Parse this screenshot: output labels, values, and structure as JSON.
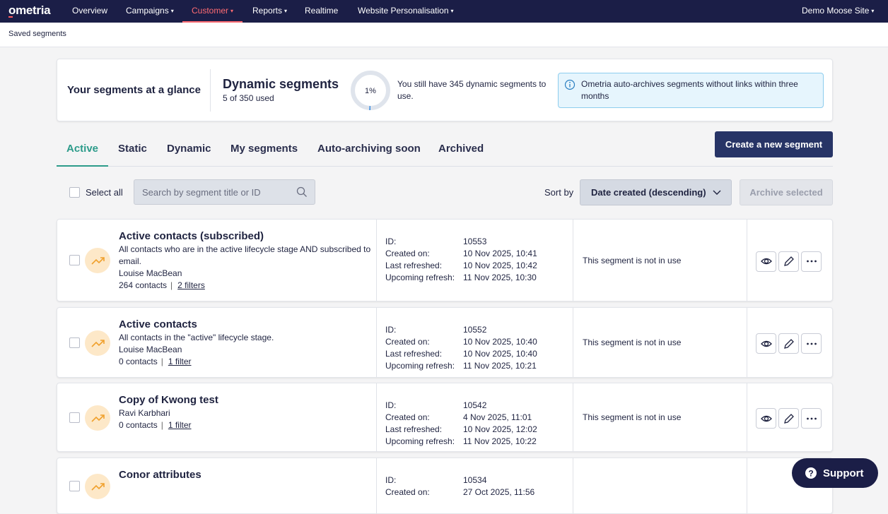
{
  "nav": {
    "logo": "ometria",
    "items": [
      "Overview",
      "Campaigns",
      "Customer",
      "Reports",
      "Realtime",
      "Website Personalisation"
    ],
    "site": "Demo Moose Site"
  },
  "breadcrumb": "Saved segments",
  "glance": {
    "title": "Your segments at a glance",
    "dynamic_title": "Dynamic segments",
    "used": "5 of 350 used",
    "usage": {
      "value": 1,
      "label": "1%"
    },
    "remaining": "You still have 345 dynamic segments to use.",
    "info": "Ometria auto-archives segments without links within three months"
  },
  "tabs": [
    "Active",
    "Static",
    "Dynamic",
    "My segments",
    "Auto-archiving soon",
    "Archived"
  ],
  "create_button": "Create a new segment",
  "toolbar": {
    "select_all": "Select all",
    "search_placeholder": "Search by segment title or ID",
    "sort_label": "Sort by",
    "sort_value": "Date created (descending)",
    "archive_button": "Archive selected"
  },
  "detail_labels": {
    "id": "ID:",
    "created_on": "Created on:",
    "last_refreshed": "Last refreshed:",
    "upcoming_refresh": "Upcoming refresh:"
  },
  "segments": [
    {
      "title": "Active contacts (subscribed)",
      "description": "All contacts who are in the active lifecycle stage AND subscribed to email.",
      "owner": "Louise MacBean",
      "contacts": "264 contacts",
      "filters": "2 filters",
      "id": "10553",
      "created_on": "10 Nov 2025, 10:41",
      "last_refreshed": "10 Nov 2025, 10:42",
      "upcoming_refresh": "11 Nov 2025, 10:30",
      "status": "This segment is not in use"
    },
    {
      "title": "Active contacts",
      "description": "All contacts in the \"active\" lifecycle stage.",
      "owner": "Louise MacBean",
      "contacts": "0 contacts",
      "filters": "1 filter",
      "id": "10552",
      "created_on": "10 Nov 2025, 10:40",
      "last_refreshed": "10 Nov 2025, 10:40",
      "upcoming_refresh": "11 Nov 2025, 10:21",
      "status": "This segment is not in use"
    },
    {
      "title": "Copy of Kwong test",
      "owner": "Ravi Karbhari",
      "contacts": "0 contacts",
      "filters": "1 filter",
      "id": "10542",
      "created_on": "4 Nov 2025, 11:01",
      "last_refreshed": "10 Nov 2025, 12:02",
      "upcoming_refresh": "11 Nov 2025, 10:22",
      "status": "This segment is not in use"
    },
    {
      "title": "Conor attributes",
      "id": "10534",
      "created_on": "27 Oct 2025, 11:56"
    }
  ],
  "support": "Support"
}
